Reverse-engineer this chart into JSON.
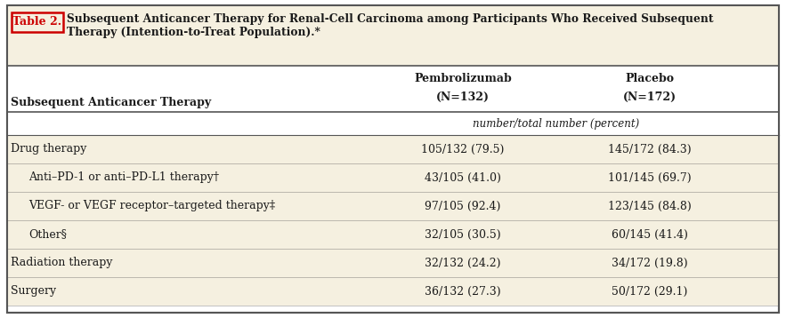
{
  "title_label": "Table 2.",
  "title_text": "Subsequent Anticancer Therapy for Renal-Cell Carcinoma among Participants Who Received Subsequent\nTherapy (Intention-to-Treat Population).*",
  "col_header_therapy": "Subsequent Anticancer Therapy",
  "col_header_pembro_line1": "Pembrolizumab",
  "col_header_pembro_line2": "(N=132)",
  "col_header_placebo_line1": "Placebo",
  "col_header_placebo_line2": "(N=172)",
  "subheader": "number/total number (percent)",
  "rows": [
    {
      "label": "Drug therapy",
      "indent": 0,
      "pembro": "105/132 (79.5)",
      "placebo": "145/172 (84.3)"
    },
    {
      "label": "Anti–PD-1 or anti–PD-L1 therapy†",
      "indent": 1,
      "pembro": "43/105 (41.0)",
      "placebo": "101/145 (69.7)"
    },
    {
      "label": "VEGF- or VEGF receptor–targeted therapy‡",
      "indent": 1,
      "pembro": "97/105 (92.4)",
      "placebo": "123/145 (84.8)"
    },
    {
      "label": "Other§",
      "indent": 1,
      "pembro": "32/105 (30.5)",
      "placebo": "60/145 (41.4)"
    },
    {
      "label": "Radiation therapy",
      "indent": 0,
      "pembro": "32/132 (24.2)",
      "placebo": "34/172 (19.8)"
    },
    {
      "label": "Surgery",
      "indent": 0,
      "pembro": "36/132 (27.3)",
      "placebo": "50/172 (29.1)"
    }
  ],
  "cream_color": "#f5f0e0",
  "white_color": "#ffffff",
  "border_color": "#555555",
  "title_box_red": "#cc0000",
  "text_color": "#1a1a1a",
  "fig_w": 8.83,
  "fig_h": 3.58,
  "dpi": 100
}
